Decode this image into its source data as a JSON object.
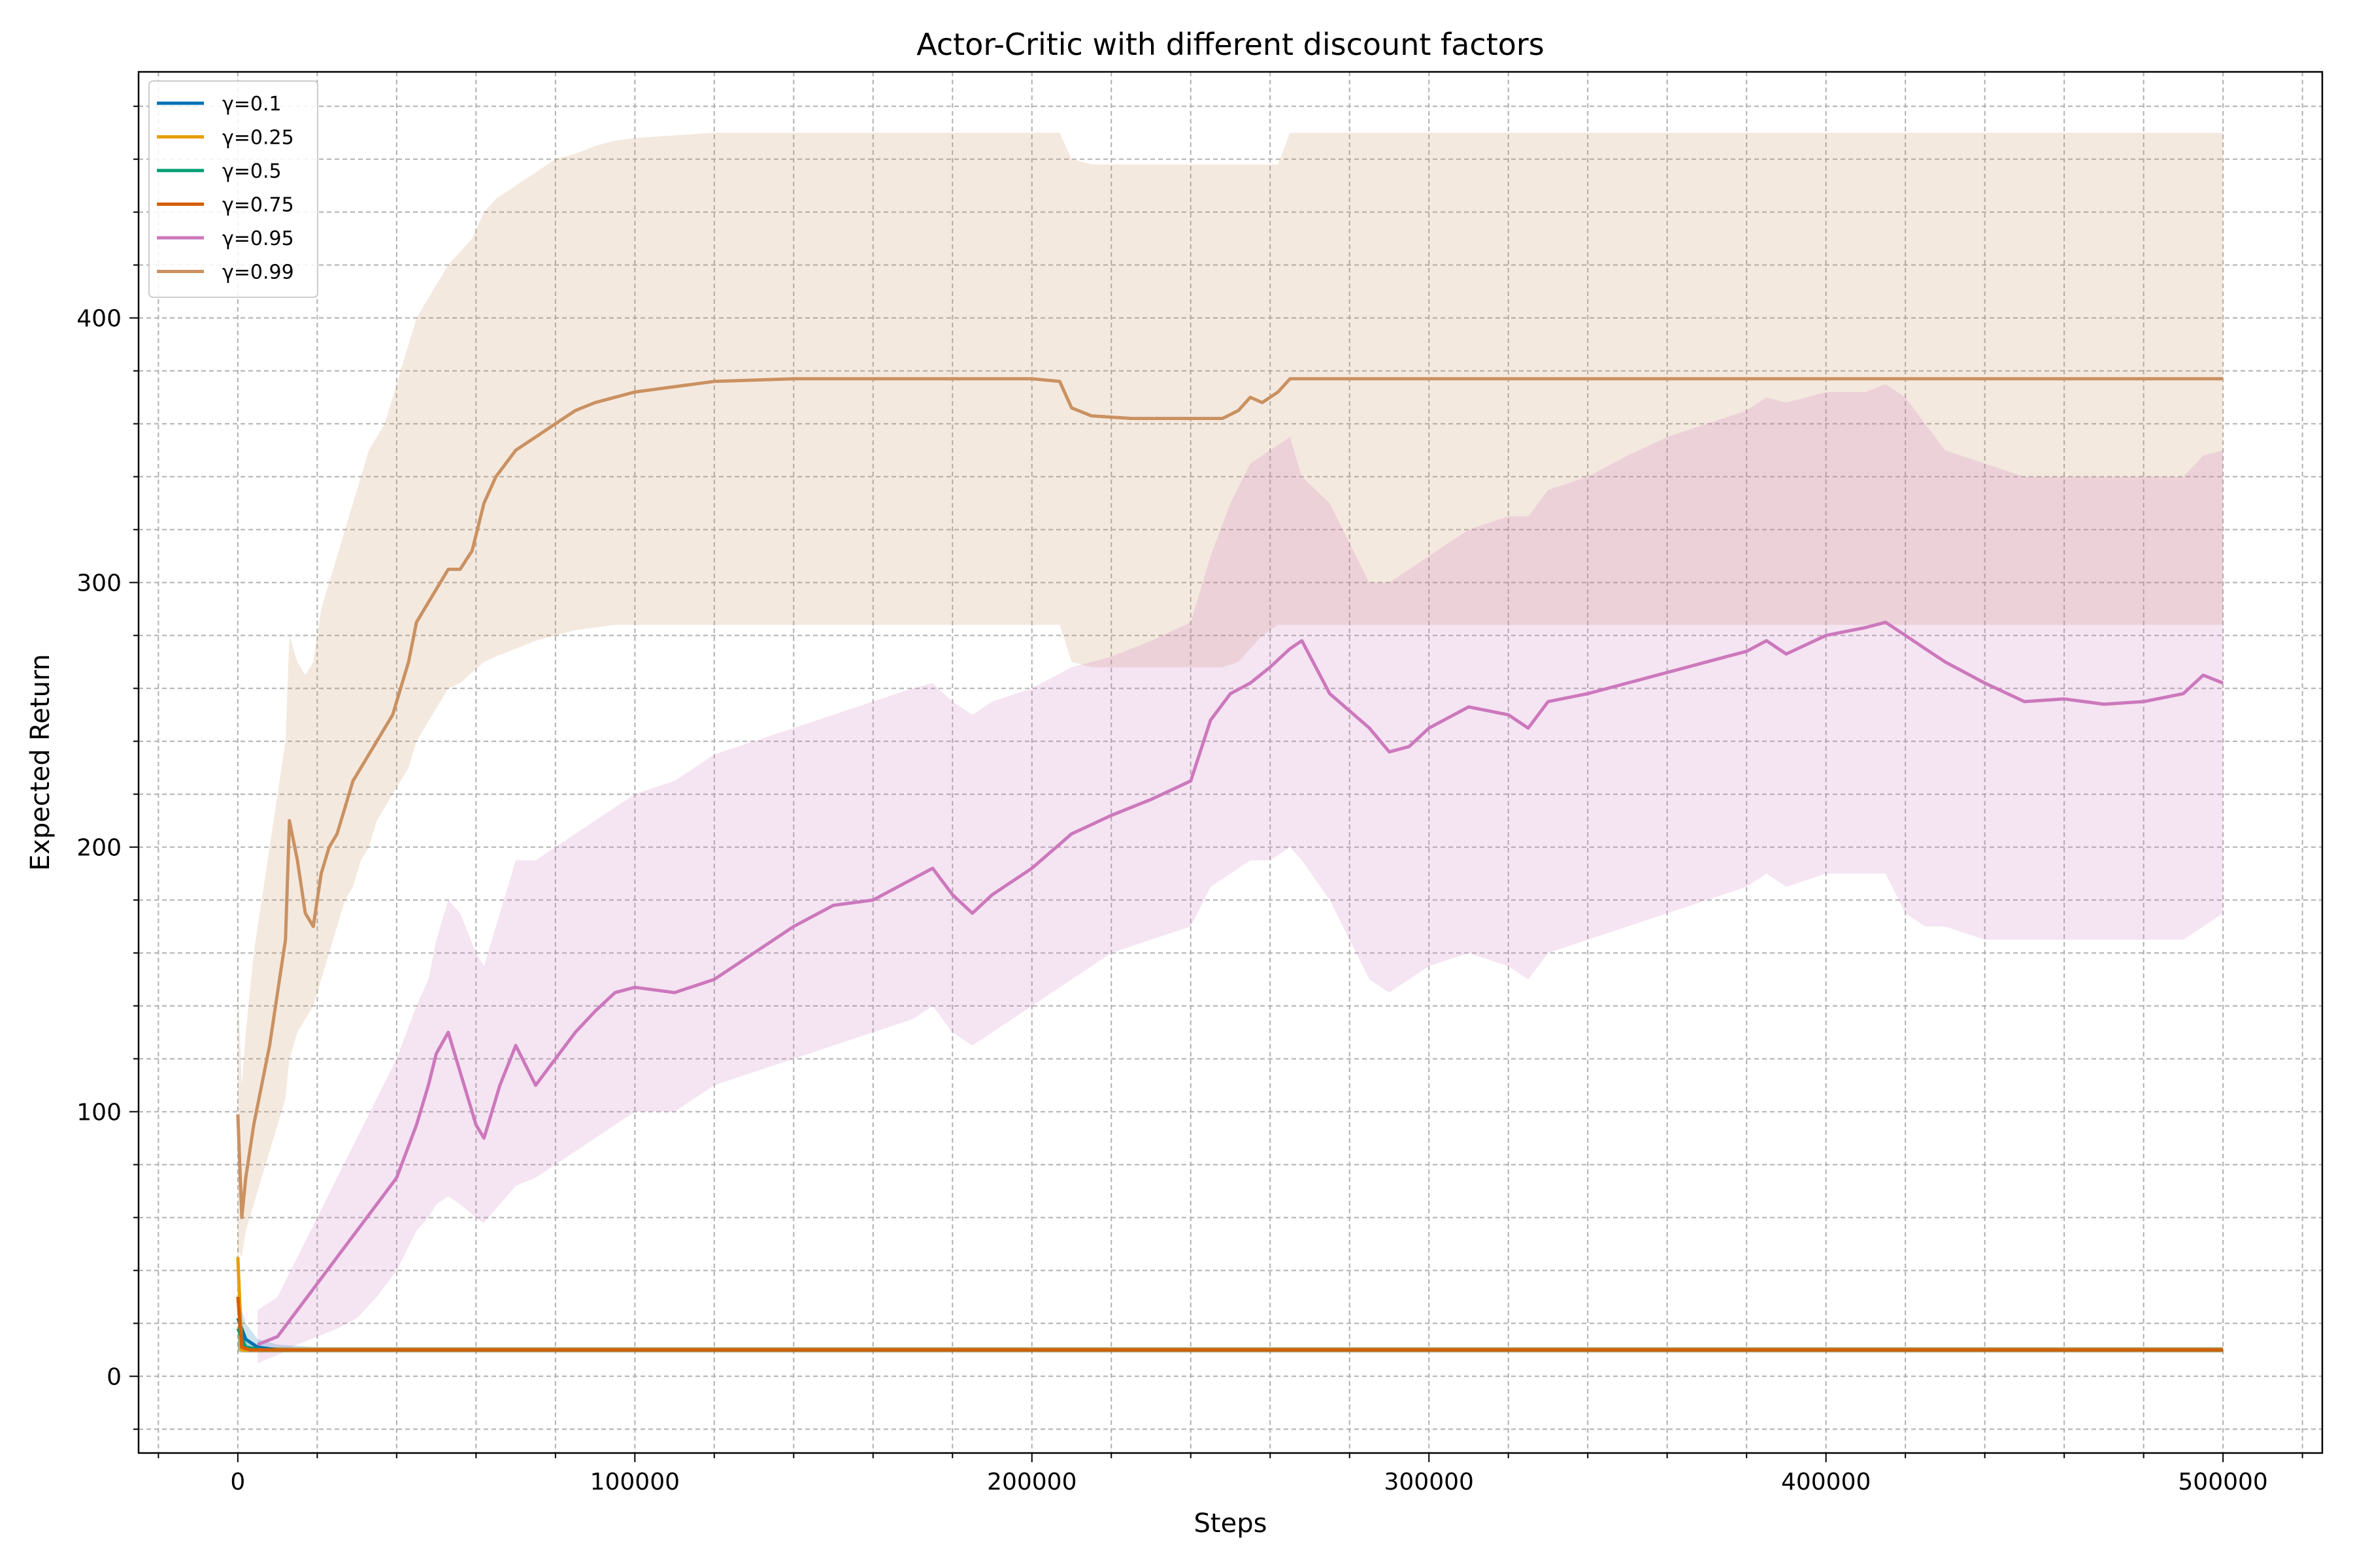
{
  "chart_data": {
    "type": "line",
    "title": "Actor-Critic with different discount factors",
    "xlabel": "Steps",
    "ylabel": "Expected Return",
    "xlim": [
      -25000,
      525000
    ],
    "ylim": [
      -29,
      493
    ],
    "xticks": [
      0,
      100000,
      200000,
      300000,
      400000,
      500000
    ],
    "yticks": [
      0,
      100,
      200,
      300,
      400
    ],
    "grid": "major and minor, dashed",
    "legend_position": "upper-left",
    "series": [
      {
        "name": "γ=0.1",
        "color": "#0072b2",
        "x": [
          0,
          2000,
          5000,
          10000,
          20000,
          500000
        ],
        "y": [
          22,
          14,
          11,
          10,
          10,
          10
        ],
        "band_low": [
          10,
          9,
          9,
          9,
          9,
          9
        ],
        "band_high": [
          30,
          20,
          14,
          12,
          11,
          11
        ]
      },
      {
        "name": "γ=0.25",
        "color": "#e69f00",
        "x": [
          0,
          1000,
          3000,
          8000,
          500000
        ],
        "y": [
          45,
          10,
          10,
          10,
          10
        ],
        "band_low": [
          10,
          9,
          9,
          9,
          9
        ],
        "band_high": [
          60,
          12,
          11,
          11,
          11
        ]
      },
      {
        "name": "γ=0.5",
        "color": "#009e73",
        "x": [
          0,
          2000,
          6000,
          500000
        ],
        "y": [
          18,
          11,
          10,
          10
        ],
        "band_low": [
          9,
          9,
          9,
          9
        ],
        "band_high": [
          25,
          13,
          11,
          11
        ]
      },
      {
        "name": "γ=0.75",
        "color": "#d55e00",
        "x": [
          0,
          1000,
          3000,
          7000,
          500000
        ],
        "y": [
          30,
          11,
          10,
          10,
          10
        ],
        "band_low": [
          9,
          9,
          9,
          9,
          9
        ],
        "band_high": [
          40,
          12,
          11,
          11,
          11
        ]
      },
      {
        "name": "γ=0.95",
        "color": "#cc78bc",
        "x": [
          5000,
          10000,
          15000,
          20000,
          25000,
          30000,
          35000,
          40000,
          45000,
          48000,
          50000,
          53000,
          56000,
          60000,
          62000,
          66000,
          70000,
          75000,
          80000,
          85000,
          90000,
          95000,
          100000,
          110000,
          120000,
          130000,
          140000,
          150000,
          160000,
          170000,
          175000,
          180000,
          185000,
          190000,
          200000,
          210000,
          220000,
          230000,
          240000,
          245000,
          250000,
          255000,
          260000,
          265000,
          268000,
          275000,
          285000,
          290000,
          295000,
          300000,
          310000,
          320000,
          325000,
          330000,
          340000,
          350000,
          360000,
          370000,
          380000,
          385000,
          390000,
          400000,
          410000,
          415000,
          420000,
          425000,
          430000,
          440000,
          450000,
          460000,
          470000,
          480000,
          490000,
          495000,
          500000
        ],
        "y": [
          12,
          15,
          25,
          35,
          45,
          55,
          65,
          75,
          95,
          110,
          122,
          130,
          115,
          95,
          90,
          110,
          125,
          110,
          120,
          130,
          138,
          145,
          147,
          145,
          150,
          160,
          170,
          178,
          180,
          188,
          192,
          182,
          175,
          182,
          192,
          205,
          212,
          218,
          225,
          248,
          258,
          262,
          268,
          275,
          278,
          258,
          245,
          236,
          238,
          245,
          253,
          250,
          245,
          255,
          258,
          262,
          266,
          270,
          274,
          278,
          273,
          280,
          283,
          285,
          280,
          275,
          270,
          262,
          255,
          256,
          254,
          255,
          258,
          265,
          262
        ],
        "band_low": [
          5,
          8,
          12,
          15,
          18,
          22,
          30,
          40,
          55,
          60,
          65,
          68,
          65,
          60,
          58,
          65,
          72,
          75,
          80,
          85,
          90,
          95,
          100,
          100,
          110,
          115,
          120,
          125,
          130,
          135,
          140,
          130,
          125,
          130,
          140,
          150,
          160,
          165,
          170,
          185,
          190,
          195,
          195,
          200,
          195,
          180,
          150,
          145,
          150,
          155,
          160,
          155,
          150,
          160,
          165,
          170,
          175,
          180,
          185,
          190,
          185,
          190,
          190,
          190,
          175,
          170,
          170,
          165,
          165,
          165,
          165,
          165,
          165,
          170,
          175
        ],
        "band_high": [
          25,
          30,
          45,
          60,
          75,
          90,
          105,
          120,
          140,
          150,
          165,
          180,
          175,
          160,
          155,
          175,
          195,
          195,
          200,
          205,
          210,
          215,
          220,
          225,
          235,
          240,
          245,
          250,
          255,
          260,
          262,
          255,
          250,
          255,
          260,
          268,
          272,
          278,
          285,
          310,
          330,
          345,
          350,
          355,
          340,
          330,
          300,
          300,
          305,
          310,
          320,
          325,
          325,
          335,
          340,
          348,
          355,
          360,
          365,
          370,
          368,
          372,
          372,
          375,
          370,
          360,
          350,
          345,
          340,
          340,
          340,
          340,
          340,
          348,
          350
        ]
      },
      {
        "name": "γ=0.99",
        "color": "#ca9161",
        "x": [
          0,
          1000,
          2000,
          4000,
          6000,
          8000,
          10000,
          12000,
          13000,
          15000,
          17000,
          19000,
          21000,
          23000,
          25000,
          27000,
          29000,
          31000,
          33000,
          35000,
          37000,
          39000,
          41000,
          43000,
          45000,
          47000,
          49000,
          51000,
          53000,
          56000,
          59000,
          62000,
          65000,
          70000,
          75000,
          80000,
          85000,
          90000,
          95000,
          100000,
          110000,
          120000,
          140000,
          160000,
          180000,
          200000,
          207000,
          210000,
          215000,
          225000,
          240000,
          248000,
          252000,
          255000,
          258000,
          262000,
          265000,
          300000,
          400000,
          500000
        ],
        "y": [
          99,
          60,
          75,
          95,
          110,
          125,
          145,
          165,
          210,
          195,
          175,
          170,
          190,
          200,
          205,
          215,
          225,
          230,
          235,
          240,
          245,
          250,
          260,
          270,
          285,
          290,
          295,
          300,
          305,
          305,
          312,
          330,
          340,
          350,
          355,
          360,
          365,
          368,
          370,
          372,
          374,
          376,
          377,
          377,
          377,
          377,
          376,
          366,
          363,
          362,
          362,
          362,
          365,
          370,
          368,
          372,
          377,
          377,
          377,
          377
        ],
        "band_low": [
          48,
          45,
          55,
          65,
          75,
          85,
          95,
          105,
          120,
          130,
          135,
          140,
          150,
          160,
          170,
          180,
          185,
          195,
          200,
          210,
          215,
          220,
          225,
          230,
          240,
          245,
          250,
          255,
          260,
          262,
          266,
          270,
          272,
          275,
          278,
          280,
          282,
          283,
          284,
          284,
          284,
          284,
          284,
          284,
          284,
          284,
          284,
          270,
          268,
          268,
          268,
          268,
          270,
          275,
          280,
          284,
          284,
          284,
          284,
          284
        ],
        "band_high": [
          150,
          110,
          130,
          160,
          180,
          200,
          220,
          240,
          280,
          270,
          265,
          270,
          290,
          300,
          310,
          320,
          330,
          340,
          350,
          355,
          360,
          370,
          380,
          390,
          400,
          405,
          410,
          415,
          420,
          425,
          430,
          440,
          445,
          450,
          455,
          460,
          462,
          465,
          467,
          468,
          469,
          470,
          470,
          470,
          470,
          470,
          470,
          460,
          458,
          458,
          458,
          458,
          458,
          458,
          458,
          458,
          470,
          470,
          470,
          470
        ]
      }
    ]
  }
}
